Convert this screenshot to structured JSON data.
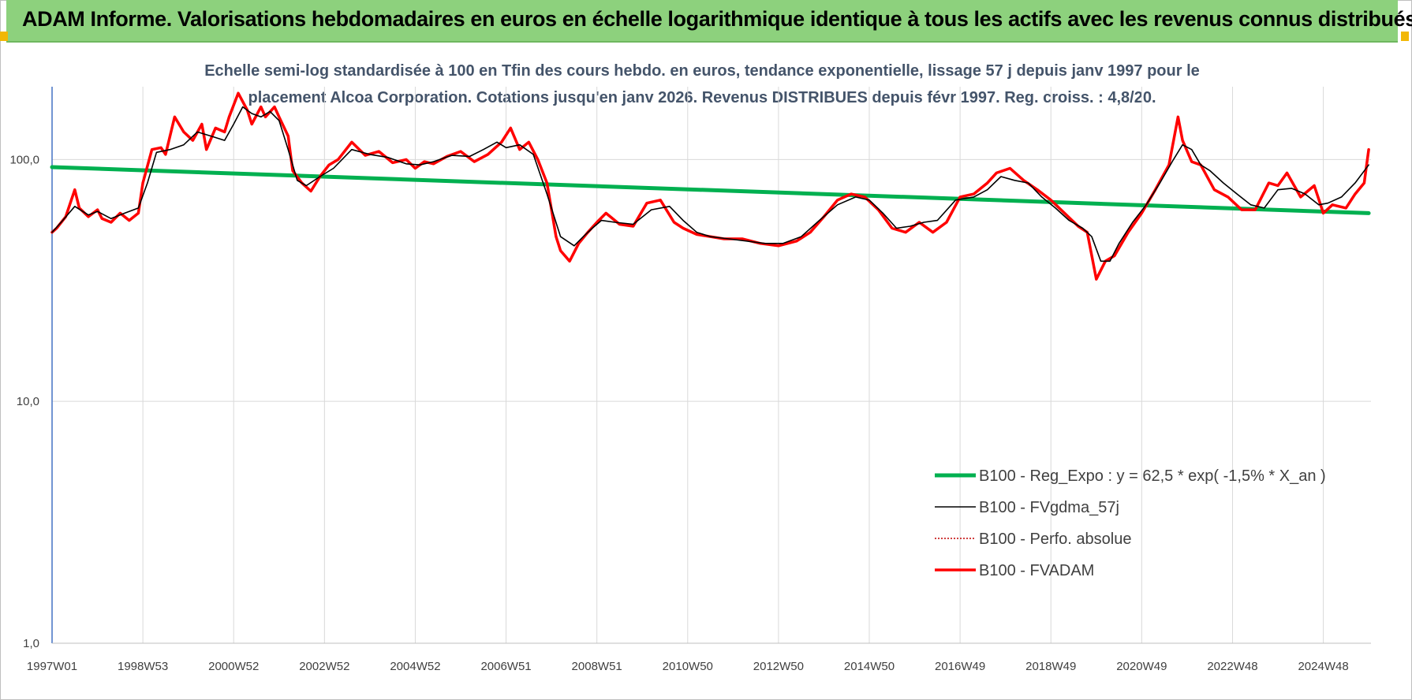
{
  "header": {
    "title": "ADAM Informe. Valorisations hebdomadaires en euros en échelle logarithmique identique à tous les actifs avec les revenus connus distribués"
  },
  "chart_data": {
    "type": "line",
    "title_line1": "Echelle semi-log standardisée à 100 en Tfin des cours hebdo. en euros, tendance exponentielle, lissage 57 j depuis janv 1997 pour le",
    "title_line2": "placement Alcoa Corporation. Cotations jusqu'en janv 2026. Revenus DISTRIBUES depuis févr 1997. Reg. croiss. : 4,8/20.",
    "y_scale": "log",
    "ylim": [
      1,
      200
    ],
    "y_ticks": [
      {
        "value": 1,
        "label": "1,0"
      },
      {
        "value": 10,
        "label": "10,0"
      },
      {
        "value": 100,
        "label": "100,0"
      }
    ],
    "xlim": [
      1997.0,
      2026.05
    ],
    "x_ticks": [
      {
        "value": 1997.0,
        "label": "1997W01"
      },
      {
        "value": 1999.0,
        "label": "1998W53"
      },
      {
        "value": 2001.0,
        "label": "2000W52"
      },
      {
        "value": 2003.0,
        "label": "2002W52"
      },
      {
        "value": 2005.0,
        "label": "2004W52"
      },
      {
        "value": 2007.0,
        "label": "2006W51"
      },
      {
        "value": 2009.0,
        "label": "2008W51"
      },
      {
        "value": 2011.0,
        "label": "2010W50"
      },
      {
        "value": 2013.0,
        "label": "2012W50"
      },
      {
        "value": 2015.0,
        "label": "2014W50"
      },
      {
        "value": 2017.0,
        "label": "2016W49"
      },
      {
        "value": 2019.0,
        "label": "2018W49"
      },
      {
        "value": 2021.0,
        "label": "2020W49"
      },
      {
        "value": 2023.0,
        "label": "2022W48"
      },
      {
        "value": 2025.0,
        "label": "2024W48"
      }
    ],
    "grid": {
      "vertical": true,
      "horizontal": true
    },
    "legend_position": "bottom-right",
    "series": [
      {
        "name": "B100 - Reg_Expo : y = 62,5 * exp( -1,5% * X_an )",
        "color": "#00b050",
        "style": "solid-thick",
        "x": [
          1997.0,
          2026.0
        ],
        "y": [
          93.0,
          60.0
        ]
      },
      {
        "name": "B100 - FVgdma_57j",
        "color": "#000000",
        "style": "solid-thin",
        "x": [
          1997.0,
          1997.2,
          1997.5,
          1997.8,
          1998.0,
          1998.3,
          1998.6,
          1998.9,
          1999.1,
          1999.3,
          1999.6,
          1999.9,
          2000.2,
          2000.5,
          2000.8,
          2001.0,
          2001.2,
          2001.4,
          2001.6,
          2001.8,
          2002.0,
          2002.2,
          2002.4,
          2002.6,
          2002.9,
          2003.2,
          2003.6,
          2004.0,
          2004.4,
          2004.8,
          2005.1,
          2005.4,
          2005.8,
          2006.2,
          2006.5,
          2006.8,
          2007.0,
          2007.3,
          2007.6,
          2007.9,
          2008.2,
          2008.5,
          2008.7,
          2008.9,
          2009.1,
          2009.4,
          2009.8,
          2010.2,
          2010.6,
          2010.9,
          2011.2,
          2011.5,
          2011.9,
          2012.3,
          2012.7,
          2013.1,
          2013.5,
          2013.9,
          2014.3,
          2014.7,
          2015.0,
          2015.3,
          2015.6,
          2015.9,
          2016.2,
          2016.5,
          2016.9,
          2017.3,
          2017.6,
          2017.9,
          2018.2,
          2018.5,
          2018.8,
          2019.1,
          2019.4,
          2019.7,
          2019.9,
          2020.1,
          2020.3,
          2020.5,
          2020.8,
          2021.1,
          2021.4,
          2021.7,
          2021.9,
          2022.1,
          2022.3,
          2022.5,
          2022.8,
          2023.1,
          2023.4,
          2023.7,
          2024.0,
          2024.3,
          2024.6,
          2024.9,
          2025.1,
          2025.4,
          2025.7,
          2026.0
        ],
        "y": [
          50,
          55,
          64,
          59,
          61,
          57,
          60,
          63,
          80,
          107,
          110,
          115,
          130,
          125,
          120,
          140,
          165,
          155,
          150,
          158,
          145,
          110,
          82,
          78,
          85,
          92,
          110,
          105,
          102,
          96,
          95,
          98,
          104,
          103,
          110,
          118,
          112,
          115,
          105,
          72,
          48,
          44,
          48,
          52,
          56,
          55,
          54,
          62,
          64,
          56,
          50,
          48,
          47,
          46,
          45,
          45,
          48,
          56,
          65,
          70,
          68,
          60,
          52,
          53,
          55,
          56,
          68,
          70,
          75,
          85,
          82,
          80,
          70,
          63,
          56,
          52,
          48,
          38,
          38,
          45,
          55,
          65,
          80,
          100,
          115,
          110,
          95,
          90,
          80,
          72,
          65,
          63,
          75,
          76,
          72,
          65,
          66,
          70,
          80,
          95
        ]
      },
      {
        "name": "B100 - Perfo. absolue",
        "color": "#c00000",
        "style": "dotted"
      },
      {
        "name": "B100 - FVADAM",
        "color": "#ff0000",
        "style": "solid-thick",
        "x": [
          1997.0,
          1997.1,
          1997.3,
          1997.5,
          1997.6,
          1997.8,
          1998.0,
          1998.1,
          1998.3,
          1998.5,
          1998.7,
          1998.9,
          1999.0,
          1999.2,
          1999.4,
          1999.5,
          1999.7,
          1999.9,
          2000.1,
          2000.3,
          2000.4,
          2000.6,
          2000.8,
          2000.9,
          2001.1,
          2001.3,
          2001.4,
          2001.6,
          2001.7,
          2001.9,
          2002.0,
          2002.2,
          2002.3,
          2002.5,
          2002.7,
          2002.9,
          2003.1,
          2003.3,
          2003.6,
          2003.9,
          2004.2,
          2004.5,
          2004.8,
          2005.0,
          2005.2,
          2005.4,
          2005.7,
          2006.0,
          2006.3,
          2006.6,
          2006.9,
          2007.1,
          2007.3,
          2007.5,
          2007.7,
          2007.9,
          2008.1,
          2008.2,
          2008.4,
          2008.6,
          2008.8,
          2009.0,
          2009.2,
          2009.5,
          2009.8,
          2010.1,
          2010.4,
          2010.7,
          2010.9,
          2011.2,
          2011.5,
          2011.8,
          2012.2,
          2012.6,
          2013.0,
          2013.4,
          2013.7,
          2014.0,
          2014.3,
          2014.6,
          2014.9,
          2015.2,
          2015.5,
          2015.8,
          2016.1,
          2016.4,
          2016.7,
          2017.0,
          2017.3,
          2017.6,
          2017.8,
          2018.1,
          2018.4,
          2018.7,
          2019.0,
          2019.3,
          2019.6,
          2019.8,
          2020.0,
          2020.2,
          2020.4,
          2020.7,
          2021.0,
          2021.3,
          2021.6,
          2021.8,
          2021.9,
          2022.1,
          2022.3,
          2022.6,
          2022.9,
          2023.2,
          2023.5,
          2023.8,
          2024.0,
          2024.2,
          2024.5,
          2024.8,
          2025.0,
          2025.2,
          2025.5,
          2025.7,
          2025.9,
          2026.0
        ],
        "y": [
          50,
          52,
          58,
          75,
          63,
          58,
          62,
          57,
          55,
          60,
          56,
          60,
          80,
          110,
          112,
          105,
          150,
          130,
          120,
          140,
          110,
          135,
          130,
          150,
          188,
          160,
          140,
          165,
          150,
          165,
          150,
          125,
          90,
          80,
          74,
          85,
          95,
          100,
          118,
          104,
          108,
          97,
          100,
          92,
          98,
          96,
          103,
          108,
          98,
          105,
          118,
          135,
          110,
          118,
          100,
          80,
          48,
          42,
          38,
          45,
          50,
          55,
          60,
          54,
          53,
          66,
          68,
          55,
          52,
          49,
          48,
          47,
          47,
          45,
          44,
          46,
          50,
          58,
          68,
          72,
          70,
          62,
          52,
          50,
          55,
          50,
          55,
          70,
          72,
          80,
          88,
          92,
          82,
          75,
          68,
          60,
          53,
          50,
          32,
          38,
          40,
          50,
          60,
          75,
          95,
          150,
          120,
          98,
          95,
          75,
          70,
          62,
          62,
          80,
          78,
          88,
          70,
          78,
          60,
          65,
          63,
          72,
          80,
          110
        ]
      }
    ]
  }
}
